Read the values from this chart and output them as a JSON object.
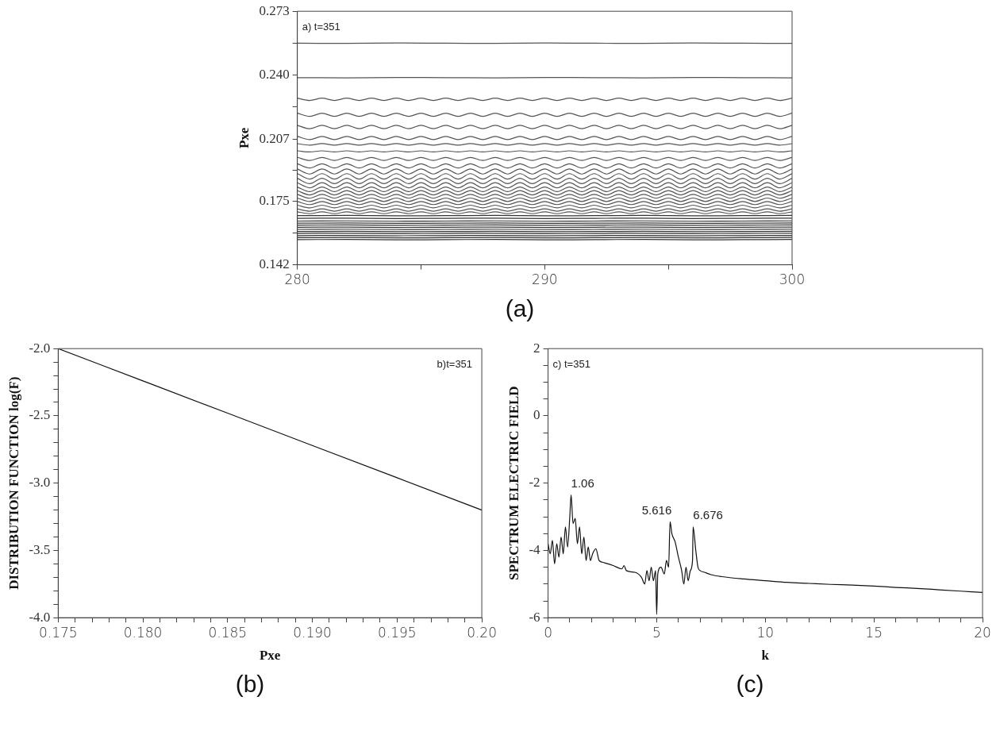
{
  "chart_data": [
    {
      "type": "line",
      "ylabel": "Pxe",
      "xlim": [
        280,
        300
      ],
      "ylim": [
        0.142,
        0.273
      ],
      "xticks": [
        280,
        {
          "value": 285,
          "label": null
        },
        290,
        {
          "value": 295,
          "label": null
        },
        300
      ],
      "yticks": [
        0.142,
        {
          "value": 0.1585,
          "label": null
        },
        0.175,
        {
          "value": 0.191,
          "label": null
        },
        0.207,
        {
          "value": 0.2235,
          "label": null
        },
        {
          "value": 0.24,
          "label": "0.240"
        },
        {
          "value": 0.2565,
          "label": null
        },
        0.273
      ],
      "annotations": [
        "a) t=351",
        "(a)"
      ],
      "x": [
        280,
        280.5,
        281,
        281.5,
        282,
        282.5,
        283,
        283.5,
        284,
        284.5,
        285,
        285.5,
        286,
        286.5,
        287,
        287.5,
        288,
        288.5,
        289,
        289.5,
        290,
        290.5,
        291,
        291.5,
        292,
        292.5,
        293,
        293.5,
        294,
        294.5,
        295,
        295.5,
        296,
        296.5,
        297,
        297.5,
        298,
        298.5,
        299,
        299.5,
        300
      ],
      "series": [
        {
          "color": "#555555",
          "x": [
            280,
            282,
            284,
            286,
            288,
            290,
            292,
            294,
            296,
            298,
            300
          ],
          "values": [
            0.2565,
            0.2564,
            0.2566,
            0.2565,
            0.2564,
            0.2566,
            0.2565,
            0.2564,
            0.2566,
            0.2565,
            0.2564
          ]
        },
        {
          "color": "#555555",
          "x": [
            280,
            282,
            284,
            286,
            288,
            290,
            292,
            294,
            296,
            298,
            300
          ],
          "values": [
            0.2387,
            0.2386,
            0.2388,
            0.2387,
            0.2386,
            0.2388,
            0.2387,
            0.2386,
            0.2388,
            0.2387,
            0.2386
          ]
        },
        {
          "color": "#555555",
          "values": [
            0.2281,
            0.2269,
            0.2281,
            0.2269,
            0.2281,
            0.2269,
            0.2281,
            0.2269,
            0.2281,
            0.2269,
            0.2281,
            0.2269,
            0.2281,
            0.2269,
            0.2281,
            0.2269,
            0.2281,
            0.2269,
            0.2281,
            0.2269,
            0.2281,
            0.2269,
            0.2281,
            0.2269,
            0.2281,
            0.2269,
            0.2281,
            0.2269,
            0.2281,
            0.2269,
            0.2281,
            0.2269,
            0.2281,
            0.2269,
            0.2281,
            0.2269,
            0.2281,
            0.2269,
            0.2281,
            0.2269,
            0.2281
          ]
        },
        {
          "color": "#555555",
          "values": [
            0.2203,
            0.2187,
            0.2203,
            0.2187,
            0.2203,
            0.2187,
            0.2203,
            0.2187,
            0.2203,
            0.2187,
            0.2203,
            0.2187,
            0.2203,
            0.2187,
            0.2203,
            0.2187,
            0.2203,
            0.2187,
            0.2203,
            0.2187,
            0.2203,
            0.2187,
            0.2203,
            0.2187,
            0.2203,
            0.2187,
            0.2203,
            0.2187,
            0.2203,
            0.2187,
            0.2203,
            0.2187,
            0.2203,
            0.2187,
            0.2203,
            0.2187,
            0.2203,
            0.2187,
            0.2203,
            0.2187,
            0.2203
          ]
        },
        {
          "color": "#555555",
          "values": [
            0.2141,
            0.2123,
            0.2141,
            0.2123,
            0.2141,
            0.2123,
            0.2141,
            0.2123,
            0.2141,
            0.2123,
            0.2141,
            0.2123,
            0.2141,
            0.2123,
            0.2141,
            0.2123,
            0.2141,
            0.2123,
            0.2141,
            0.2123,
            0.2141,
            0.2123,
            0.2141,
            0.2123,
            0.2141,
            0.2123,
            0.2141,
            0.2123,
            0.2141,
            0.2123,
            0.2141,
            0.2123,
            0.2141,
            0.2123,
            0.2141,
            0.2123,
            0.2141,
            0.2123,
            0.2141,
            0.2123,
            0.2141
          ]
        },
        {
          "color": "#555555",
          "values": [
            0.2083,
            0.2067,
            0.2083,
            0.2067,
            0.2083,
            0.2067,
            0.2083,
            0.2067,
            0.2083,
            0.2067,
            0.2083,
            0.2067,
            0.2083,
            0.2067,
            0.2083,
            0.2067,
            0.2083,
            0.2067,
            0.2083,
            0.2067,
            0.2083,
            0.2067,
            0.2083,
            0.2067,
            0.2083,
            0.2067,
            0.2083,
            0.2067,
            0.2083,
            0.2067,
            0.2083,
            0.2067,
            0.2083,
            0.2067,
            0.2083,
            0.2067,
            0.2083,
            0.2067,
            0.2083,
            0.2067,
            0.2083
          ]
        },
        {
          "color": "#555555",
          "values": [
            0.2046,
            0.2038,
            0.2046,
            0.2038,
            0.2046,
            0.2038,
            0.2046,
            0.2038,
            0.2046,
            0.2038,
            0.2046,
            0.2038,
            0.2046,
            0.2038,
            0.2046,
            0.2038,
            0.2046,
            0.2038,
            0.2046,
            0.2038,
            0.2046,
            0.2038,
            0.2046,
            0.2038,
            0.2046,
            0.2038,
            0.2046,
            0.2038,
            0.2046,
            0.2038,
            0.2046,
            0.2038,
            0.2046,
            0.2038,
            0.2046,
            0.2038,
            0.2046,
            0.2038,
            0.2046,
            0.2038,
            0.2046
          ]
        },
        {
          "color": "#555555",
          "values": [
            0.2009,
            0.2003,
            0.2009,
            0.2003,
            0.2009,
            0.2003,
            0.2009,
            0.2003,
            0.2009,
            0.2003,
            0.2009,
            0.2003,
            0.2009,
            0.2003,
            0.2009,
            0.2003,
            0.2009,
            0.2003,
            0.2009,
            0.2003,
            0.2009,
            0.2003,
            0.2009,
            0.2003,
            0.2009,
            0.2003,
            0.2009,
            0.2003,
            0.2009,
            0.2003,
            0.2009,
            0.2003,
            0.2009,
            0.2003,
            0.2009,
            0.2003,
            0.2009,
            0.2003,
            0.2009,
            0.2003,
            0.2009
          ]
        },
        {
          "color": "#555555",
          "values": [
            0.1975,
            0.1959,
            0.1975,
            0.1959,
            0.1975,
            0.1959,
            0.1975,
            0.1959,
            0.1975,
            0.1959,
            0.1975,
            0.1959,
            0.1975,
            0.1959,
            0.1975,
            0.1959,
            0.1975,
            0.1959,
            0.1975,
            0.1959,
            0.1975,
            0.1959,
            0.1975,
            0.1959,
            0.1975,
            0.1959,
            0.1975,
            0.1959,
            0.1975,
            0.1959,
            0.1975,
            0.1959,
            0.1975,
            0.1959,
            0.1975,
            0.1959,
            0.1975,
            0.1959,
            0.1975,
            0.1959,
            0.1975
          ]
        },
        {
          "color": "#555555",
          "values": [
            0.1942,
            0.192,
            0.1942,
            0.192,
            0.1942,
            0.192,
            0.1942,
            0.192,
            0.1942,
            0.192,
            0.1942,
            0.192,
            0.1942,
            0.192,
            0.1942,
            0.192,
            0.1942,
            0.192,
            0.1942,
            0.192,
            0.1942,
            0.192,
            0.1942,
            0.192,
            0.1942,
            0.192,
            0.1942,
            0.192,
            0.1942,
            0.192,
            0.1942,
            0.192,
            0.1942,
            0.192,
            0.1942,
            0.192,
            0.1942,
            0.192,
            0.1942,
            0.192,
            0.1942
          ]
        },
        {
          "color": "#555555",
          "values": [
            0.1915,
            0.1889,
            0.1915,
            0.1889,
            0.1915,
            0.1889,
            0.1915,
            0.1889,
            0.1915,
            0.1889,
            0.1915,
            0.1889,
            0.1915,
            0.1889,
            0.1915,
            0.1889,
            0.1915,
            0.1889,
            0.1915,
            0.1889,
            0.1915,
            0.1889,
            0.1915,
            0.1889,
            0.1915,
            0.1889,
            0.1915,
            0.1889,
            0.1915,
            0.1889,
            0.1915,
            0.1889,
            0.1915,
            0.1889,
            0.1915,
            0.1889,
            0.1915,
            0.1889,
            0.1915,
            0.1889,
            0.1915
          ]
        },
        {
          "color": "#555555",
          "values": [
            0.1891,
            0.1863,
            0.1891,
            0.1863,
            0.1891,
            0.1863,
            0.1891,
            0.1863,
            0.1891,
            0.1863,
            0.1891,
            0.1863,
            0.1891,
            0.1863,
            0.1891,
            0.1863,
            0.1891,
            0.1863,
            0.1891,
            0.1863,
            0.1891,
            0.1863,
            0.1891,
            0.1863,
            0.1891,
            0.1863,
            0.1891,
            0.1863,
            0.1891,
            0.1863,
            0.1891,
            0.1863,
            0.1891,
            0.1863,
            0.1891,
            0.1863,
            0.1891,
            0.1863,
            0.1891,
            0.1863,
            0.1891
          ]
        },
        {
          "color": "#555555",
          "values": [
            0.1867,
            0.1839,
            0.1867,
            0.1839,
            0.1867,
            0.1839,
            0.1867,
            0.1839,
            0.1867,
            0.1839,
            0.1867,
            0.1839,
            0.1867,
            0.1839,
            0.1867,
            0.1839,
            0.1867,
            0.1839,
            0.1867,
            0.1839,
            0.1867,
            0.1839,
            0.1867,
            0.1839,
            0.1867,
            0.1839,
            0.1867,
            0.1839,
            0.1867,
            0.1839,
            0.1867,
            0.1839,
            0.1867,
            0.1839,
            0.1867,
            0.1839,
            0.1867,
            0.1839,
            0.1867,
            0.1839,
            0.1867
          ]
        },
        {
          "color": "#555555",
          "values": [
            0.1844,
            0.1818,
            0.1844,
            0.1818,
            0.1844,
            0.1818,
            0.1844,
            0.1818,
            0.1844,
            0.1818,
            0.1844,
            0.1818,
            0.1844,
            0.1818,
            0.1844,
            0.1818,
            0.1844,
            0.1818,
            0.1844,
            0.1818,
            0.1844,
            0.1818,
            0.1844,
            0.1818,
            0.1844,
            0.1818,
            0.1844,
            0.1818,
            0.1844,
            0.1818,
            0.1844,
            0.1818,
            0.1844,
            0.1818,
            0.1844,
            0.1818,
            0.1844,
            0.1818,
            0.1844,
            0.1818,
            0.1844
          ]
        },
        {
          "color": "#555555",
          "values": [
            0.1822,
            0.1798,
            0.1822,
            0.1798,
            0.1822,
            0.1798,
            0.1822,
            0.1798,
            0.1822,
            0.1798,
            0.1822,
            0.1798,
            0.1822,
            0.1798,
            0.1822,
            0.1798,
            0.1822,
            0.1798,
            0.1822,
            0.1798,
            0.1822,
            0.1798,
            0.1822,
            0.1798,
            0.1822,
            0.1798,
            0.1822,
            0.1798,
            0.1822,
            0.1798,
            0.1822,
            0.1798,
            0.1822,
            0.1798,
            0.1822,
            0.1798,
            0.1822,
            0.1798,
            0.1822,
            0.1798,
            0.1822
          ]
        },
        {
          "color": "#555555",
          "values": [
            0.1803,
            0.1781,
            0.1803,
            0.1781,
            0.1803,
            0.1781,
            0.1803,
            0.1781,
            0.1803,
            0.1781,
            0.1803,
            0.1781,
            0.1803,
            0.1781,
            0.1803,
            0.1781,
            0.1803,
            0.1781,
            0.1803,
            0.1781,
            0.1803,
            0.1781,
            0.1803,
            0.1781,
            0.1803,
            0.1781,
            0.1803,
            0.1781,
            0.1803,
            0.1781,
            0.1803,
            0.1781,
            0.1803,
            0.1781,
            0.1803,
            0.1781,
            0.1803,
            0.1781,
            0.1803,
            0.1781,
            0.1803
          ]
        },
        {
          "color": "#555555",
          "values": [
            0.1784,
            0.1764,
            0.1784,
            0.1764,
            0.1784,
            0.1764,
            0.1784,
            0.1764,
            0.1784,
            0.1764,
            0.1784,
            0.1764,
            0.1784,
            0.1764,
            0.1784,
            0.1764,
            0.1784,
            0.1764,
            0.1784,
            0.1764,
            0.1784,
            0.1764,
            0.1784,
            0.1764,
            0.1784,
            0.1764,
            0.1784,
            0.1764,
            0.1784,
            0.1764,
            0.1784,
            0.1764,
            0.1784,
            0.1764,
            0.1784,
            0.1764,
            0.1784,
            0.1764,
            0.1784,
            0.1764,
            0.1784
          ]
        },
        {
          "color": "#555555",
          "values": [
            0.1765,
            0.1747,
            0.1765,
            0.1747,
            0.1765,
            0.1747,
            0.1765,
            0.1747,
            0.1765,
            0.1747,
            0.1765,
            0.1747,
            0.1765,
            0.1747,
            0.1765,
            0.1747,
            0.1765,
            0.1747,
            0.1765,
            0.1747,
            0.1765,
            0.1747,
            0.1765,
            0.1747,
            0.1765,
            0.1747,
            0.1765,
            0.1747,
            0.1765,
            0.1747,
            0.1765,
            0.1747,
            0.1765,
            0.1747,
            0.1765,
            0.1747,
            0.1765,
            0.1747,
            0.1765,
            0.1747,
            0.1765
          ]
        },
        {
          "color": "#555555",
          "values": [
            0.1747,
            0.1731,
            0.1747,
            0.1731,
            0.1747,
            0.1731,
            0.1747,
            0.1731,
            0.1747,
            0.1731,
            0.1747,
            0.1731,
            0.1747,
            0.1731,
            0.1747,
            0.1731,
            0.1747,
            0.1731,
            0.1747,
            0.1731,
            0.1747,
            0.1731,
            0.1747,
            0.1731,
            0.1747,
            0.1731,
            0.1747,
            0.1731,
            0.1747,
            0.1731,
            0.1747,
            0.1731,
            0.1747,
            0.1731,
            0.1747,
            0.1731,
            0.1747,
            0.1731,
            0.1747,
            0.1731,
            0.1747
          ]
        },
        {
          "color": "#555555",
          "values": [
            0.1728,
            0.1714,
            0.1728,
            0.1714,
            0.1728,
            0.1714,
            0.1728,
            0.1714,
            0.1728,
            0.1714,
            0.1728,
            0.1714,
            0.1728,
            0.1714,
            0.1728,
            0.1714,
            0.1728,
            0.1714,
            0.1728,
            0.1714,
            0.1728,
            0.1714,
            0.1728,
            0.1714,
            0.1728,
            0.1714,
            0.1728,
            0.1714,
            0.1728,
            0.1714,
            0.1728,
            0.1714,
            0.1728,
            0.1714,
            0.1728,
            0.1714,
            0.1728,
            0.1714,
            0.1728,
            0.1714,
            0.1728
          ]
        },
        {
          "color": "#555555",
          "values": [
            0.1709,
            0.1697,
            0.1709,
            0.1697,
            0.1709,
            0.1697,
            0.1709,
            0.1697,
            0.1709,
            0.1697,
            0.1709,
            0.1697,
            0.1709,
            0.1697,
            0.1709,
            0.1697,
            0.1709,
            0.1697,
            0.1709,
            0.1697,
            0.1709,
            0.1697,
            0.1709,
            0.1697,
            0.1709,
            0.1697,
            0.1709,
            0.1697,
            0.1709,
            0.1697,
            0.1709,
            0.1697,
            0.1709,
            0.1697,
            0.1709,
            0.1697,
            0.1709,
            0.1697,
            0.1709,
            0.1697,
            0.1709
          ]
        },
        {
          "color": "#555555",
          "values": [
            0.1694,
            0.1684,
            0.1694,
            0.1684,
            0.1694,
            0.1684,
            0.1694,
            0.1684,
            0.1694,
            0.1684,
            0.1694,
            0.1684,
            0.1694,
            0.1684,
            0.1694,
            0.1684,
            0.1694,
            0.1684,
            0.1694,
            0.1684,
            0.1694,
            0.1684,
            0.1694,
            0.1684,
            0.1694,
            0.1684,
            0.1694,
            0.1684,
            0.1694,
            0.1684,
            0.1694,
            0.1684,
            0.1694,
            0.1684,
            0.1694,
            0.1684,
            0.1694,
            0.1684,
            0.1694,
            0.1684,
            0.1694
          ]
        },
        {
          "color": "#333333",
          "x": [
            280,
            282,
            284,
            286,
            288,
            290,
            292,
            294,
            296,
            298,
            300
          ],
          "values": [
            0.1674,
            0.1675,
            0.1673,
            0.1674,
            0.1675,
            0.1673,
            0.1674,
            0.1675,
            0.1673,
            0.1674,
            0.1675
          ]
        },
        {
          "color": "#333333",
          "x": [
            280,
            282,
            284,
            286,
            288,
            290,
            292,
            294,
            296,
            298,
            300
          ],
          "values": [
            0.166,
            0.1661,
            0.1659,
            0.166,
            0.1661,
            0.1659,
            0.166,
            0.1661,
            0.1659,
            0.166,
            0.1661
          ]
        },
        {
          "color": "#333333",
          "x": [
            280,
            282,
            284,
            286,
            288,
            290,
            292,
            294,
            296,
            298,
            300
          ],
          "values": [
            0.1646,
            0.1647,
            0.1645,
            0.1646,
            0.1647,
            0.1645,
            0.1646,
            0.1647,
            0.1645,
            0.1646,
            0.1647
          ]
        },
        {
          "color": "#333333",
          "x": [
            280,
            282,
            284,
            286,
            288,
            290,
            292,
            294,
            296,
            298,
            300
          ],
          "values": [
            0.1635,
            0.1636,
            0.1634,
            0.1635,
            0.1636,
            0.1634,
            0.1635,
            0.1636,
            0.1634,
            0.1635,
            0.1636
          ]
        },
        {
          "color": "#333333",
          "x": [
            280,
            282,
            284,
            286,
            288,
            290,
            292,
            294,
            296,
            298,
            300
          ],
          "values": [
            0.1625,
            0.1626,
            0.1624,
            0.1625,
            0.1626,
            0.1624,
            0.1625,
            0.1626,
            0.1624,
            0.1625,
            0.1626
          ]
        },
        {
          "color": "#333333",
          "x": [
            280,
            282,
            284,
            286,
            288,
            290,
            292,
            294,
            296,
            298,
            300
          ],
          "values": [
            0.1614,
            0.1615,
            0.1613,
            0.1614,
            0.1615,
            0.1613,
            0.1614,
            0.1615,
            0.1613,
            0.1614,
            0.1615
          ]
        },
        {
          "color": "#333333",
          "x": [
            280,
            282,
            284,
            286,
            288,
            290,
            292,
            294,
            296,
            298,
            300
          ],
          "values": [
            0.1603,
            0.1604,
            0.1602,
            0.1603,
            0.1604,
            0.1602,
            0.1603,
            0.1604,
            0.1602,
            0.1603,
            0.1604
          ]
        },
        {
          "color": "#333333",
          "x": [
            280,
            282,
            284,
            286,
            288,
            290,
            292,
            294,
            296,
            298,
            300
          ],
          "values": [
            0.1592,
            0.1593,
            0.1591,
            0.1592,
            0.1593,
            0.1591,
            0.1592,
            0.1593,
            0.1591,
            0.1592,
            0.1593
          ]
        },
        {
          "color": "#333333",
          "x": [
            280,
            282,
            284,
            286,
            288,
            290,
            292,
            294,
            296,
            298,
            300
          ],
          "values": [
            0.1582,
            0.1583,
            0.1581,
            0.1582,
            0.1583,
            0.1581,
            0.1582,
            0.1583,
            0.1581,
            0.1582,
            0.1583
          ]
        },
        {
          "color": "#333333",
          "x": [
            280,
            282,
            284,
            286,
            288,
            290,
            292,
            294,
            296,
            298,
            300
          ],
          "values": [
            0.1571,
            0.1572,
            0.157,
            0.1571,
            0.1572,
            0.157,
            0.1571,
            0.1572,
            0.157,
            0.1571,
            0.1572
          ]
        },
        {
          "color": "#333333",
          "x": [
            280,
            282,
            284,
            286,
            288,
            290,
            292,
            294,
            296,
            298,
            300
          ],
          "values": [
            0.156,
            0.1561,
            0.1559,
            0.156,
            0.1561,
            0.1559,
            0.156,
            0.1561,
            0.1559,
            0.156,
            0.1561
          ]
        },
        {
          "color": "#333333",
          "x": [
            280,
            282,
            284,
            286,
            288,
            290,
            292,
            294,
            296,
            298,
            300
          ],
          "values": [
            0.155,
            0.1551,
            0.1549,
            0.155,
            0.1551,
            0.1549,
            0.155,
            0.1551,
            0.1549,
            0.155,
            0.1551
          ]
        }
      ]
    },
    {
      "type": "line",
      "xlabel": "Pxe",
      "ylabel": "DISTRIBUTION FUNCTION log(F)",
      "xlim": [
        0.175,
        0.2
      ],
      "ylim": [
        -4.0,
        -2.0
      ],
      "xticks": [
        0.175,
        {
          "value": 0.176,
          "label": null
        },
        {
          "value": 0.177,
          "label": null
        },
        {
          "value": 0.178,
          "label": null
        },
        {
          "value": 0.179,
          "label": null
        },
        {
          "value": 0.18,
          "label": "0.180"
        },
        {
          "value": 0.181,
          "label": null
        },
        {
          "value": 0.182,
          "label": null
        },
        {
          "value": 0.183,
          "label": null
        },
        {
          "value": 0.184,
          "label": null
        },
        0.185,
        {
          "value": 0.186,
          "label": null
        },
        {
          "value": 0.187,
          "label": null
        },
        {
          "value": 0.188,
          "label": null
        },
        {
          "value": 0.189,
          "label": null
        },
        {
          "value": 0.19,
          "label": "0.190"
        },
        {
          "value": 0.191,
          "label": null
        },
        {
          "value": 0.192,
          "label": null
        },
        {
          "value": 0.193,
          "label": null
        },
        {
          "value": 0.194,
          "label": null
        },
        0.195,
        {
          "value": 0.196,
          "label": null
        },
        {
          "value": 0.197,
          "label": null
        },
        {
          "value": 0.198,
          "label": null
        },
        {
          "value": 0.199,
          "label": null
        },
        {
          "value": 0.2,
          "label": "0.20"
        }
      ],
      "yticks": [
        {
          "value": -4.0,
          "label": "-4.0"
        },
        {
          "value": -3.9,
          "label": null
        },
        {
          "value": -3.8,
          "label": null
        },
        {
          "value": -3.7,
          "label": null
        },
        {
          "value": -3.6,
          "label": null
        },
        -3.5,
        {
          "value": -3.4,
          "label": null
        },
        {
          "value": -3.3,
          "label": null
        },
        {
          "value": -3.2,
          "label": null
        },
        {
          "value": -3.1,
          "label": null
        },
        {
          "value": -3.0,
          "label": "-3.0"
        },
        {
          "value": -2.9,
          "label": null
        },
        {
          "value": -2.8,
          "label": null
        },
        {
          "value": -2.7,
          "label": null
        },
        {
          "value": -2.6,
          "label": null
        },
        -2.5,
        {
          "value": -2.4,
          "label": null
        },
        {
          "value": -2.3,
          "label": null
        },
        {
          "value": -2.2,
          "label": null
        },
        {
          "value": -2.1,
          "label": null
        },
        {
          "value": -2.0,
          "label": "-2.0"
        }
      ],
      "annotations": [
        "b)t=351",
        "(b)"
      ],
      "x": [
        0.175,
        0.18,
        0.185,
        0.19,
        0.195,
        0.2
      ],
      "series": [
        {
          "color": "#111111",
          "values": [
            -2.0,
            -2.24,
            -2.48,
            -2.72,
            -2.96,
            -3.2
          ]
        }
      ]
    },
    {
      "type": "line",
      "xlabel": "k",
      "ylabel": "SPECTRUM ELECTRIC FIELD",
      "xlim": [
        0,
        20
      ],
      "ylim": [
        -6,
        2
      ],
      "xticks": [
        0,
        {
          "value": 1,
          "label": null
        },
        {
          "value": 2,
          "label": null
        },
        {
          "value": 3,
          "label": null
        },
        {
          "value": 4,
          "label": null
        },
        5,
        {
          "value": 6,
          "label": null
        },
        {
          "value": 7,
          "label": null
        },
        {
          "value": 8,
          "label": null
        },
        {
          "value": 9,
          "label": null
        },
        10,
        {
          "value": 11,
          "label": null
        },
        {
          "value": 12,
          "label": null
        },
        {
          "value": 13,
          "label": null
        },
        {
          "value": 14,
          "label": null
        },
        15,
        {
          "value": 16,
          "label": null
        },
        {
          "value": 17,
          "label": null
        },
        {
          "value": 18,
          "label": null
        },
        {
          "value": 19,
          "label": null
        },
        20
      ],
      "yticks": [
        -6,
        {
          "value": -5.5,
          "label": null
        },
        {
          "value": -5,
          "label": null
        },
        {
          "value": -4.5,
          "label": null
        },
        -4,
        {
          "value": -3.5,
          "label": null
        },
        {
          "value": -3,
          "label": null
        },
        {
          "value": -2.5,
          "label": null
        },
        -2,
        {
          "value": -1.5,
          "label": null
        },
        {
          "value": -1,
          "label": null
        },
        {
          "value": -0.5,
          "label": null
        },
        0,
        {
          "value": 0.5,
          "label": null
        },
        {
          "value": 1,
          "label": null
        },
        {
          "value": 1.5,
          "label": null
        },
        2
      ],
      "annotations": [
        "c) t=351",
        "(c)",
        {
          "text": "1.06",
          "x": 1.06,
          "y": -2.35
        },
        {
          "text": "5.616",
          "x": 5.616,
          "y": -3.15
        },
        {
          "text": "6.676",
          "x": 6.676,
          "y": -3.3
        }
      ],
      "x": [
        0,
        0.1,
        0.2,
        0.3,
        0.4,
        0.5,
        0.6,
        0.7,
        0.8,
        0.9,
        1.0,
        1.06,
        1.15,
        1.25,
        1.35,
        1.45,
        1.55,
        1.65,
        1.75,
        1.85,
        1.95,
        2.05,
        2.2,
        2.35,
        2.5,
        3.0,
        3.4,
        3.5,
        3.6,
        4.0,
        4.3,
        4.45,
        4.55,
        4.65,
        4.75,
        4.85,
        4.95,
        5.0,
        5.05,
        5.2,
        5.35,
        5.45,
        5.55,
        5.616,
        5.7,
        5.85,
        6.0,
        6.15,
        6.25,
        6.35,
        6.45,
        6.55,
        6.65,
        6.676,
        6.8,
        6.9,
        7.0,
        7.2,
        7.5,
        8,
        9,
        10,
        11,
        12,
        13,
        14,
        15,
        16,
        17,
        18,
        19,
        20
      ],
      "series": [
        {
          "color": "#111111",
          "values": [
            -3.8,
            -4.1,
            -3.7,
            -4.4,
            -3.8,
            -4.2,
            -3.6,
            -4.1,
            -3.3,
            -3.9,
            -3.0,
            -2.35,
            -3.2,
            -3.05,
            -3.8,
            -3.3,
            -4.1,
            -3.6,
            -4.3,
            -3.9,
            -4.3,
            -4.1,
            -3.95,
            -4.3,
            -4.35,
            -4.45,
            -4.55,
            -4.45,
            -4.6,
            -4.65,
            -4.8,
            -5.0,
            -4.6,
            -4.9,
            -4.5,
            -4.9,
            -4.6,
            -5.9,
            -4.7,
            -4.5,
            -4.7,
            -4.3,
            -4.5,
            -3.15,
            -3.5,
            -3.75,
            -4.2,
            -4.6,
            -5.0,
            -4.5,
            -4.9,
            -4.6,
            -4.3,
            -3.3,
            -4.0,
            -4.5,
            -4.6,
            -4.65,
            -4.72,
            -4.78,
            -4.85,
            -4.9,
            -4.95,
            -4.98,
            -5.01,
            -5.03,
            -5.06,
            -5.1,
            -5.13,
            -5.17,
            -5.21,
            -5.25
          ]
        }
      ]
    }
  ]
}
